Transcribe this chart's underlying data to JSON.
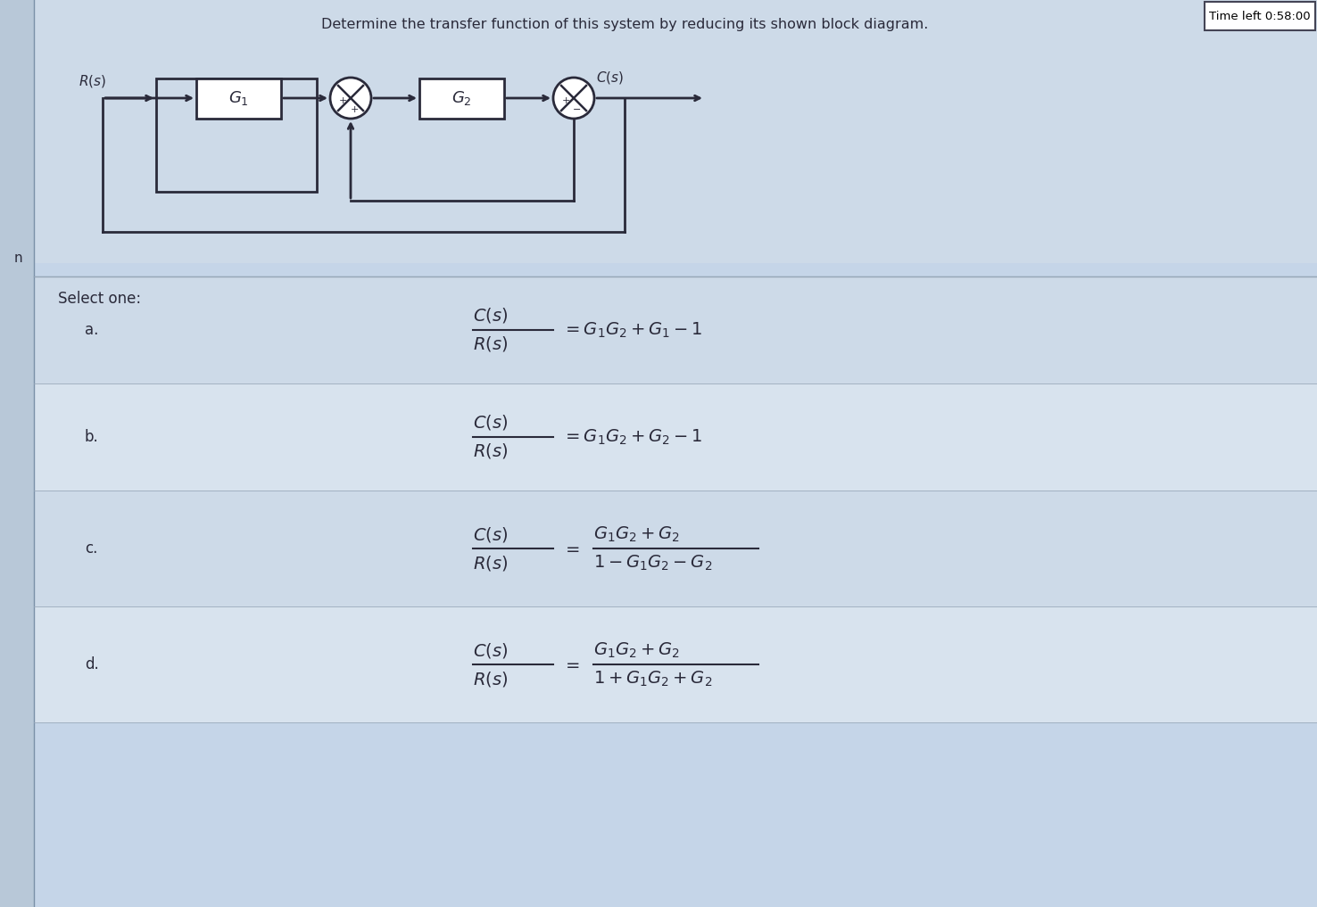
{
  "title": "Determine the transfer function of this system by reducing its shown block diagram.",
  "timer_text": "Time left 0:58:00",
  "bg_color": "#c5d5e8",
  "panel_bg": "#c8d8e8",
  "diagram_bg": "#d4e0ec",
  "white": "#ffffff",
  "select_one": "Select one:",
  "options": [
    "a.",
    "b.",
    "c.",
    "d."
  ],
  "n_label": "n",
  "line_color": "#2a2a3a",
  "text_color": "#2a2a3a"
}
